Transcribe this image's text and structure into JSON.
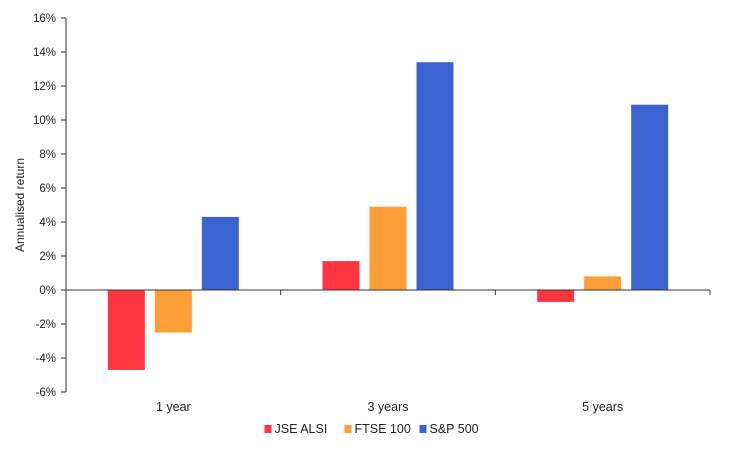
{
  "chart_data": {
    "type": "bar",
    "title": "",
    "xlabel": "",
    "ylabel": "Annualised return",
    "categories": [
      "1 year",
      "3 years",
      "5 years"
    ],
    "series": [
      {
        "name": "JSE ALSI",
        "color": "#ff3640",
        "values": [
          -4.7,
          1.7,
          -0.7
        ]
      },
      {
        "name": "FTSE 100",
        "color": "#ff9e36",
        "values": [
          -2.5,
          4.9,
          0.8
        ]
      },
      {
        "name": "S&P 500",
        "color": "#3a63d0",
        "values": [
          4.3,
          13.4,
          10.9
        ]
      }
    ],
    "ylim": [
      -6,
      16
    ],
    "yticks": [
      -6,
      -4,
      -2,
      0,
      2,
      4,
      6,
      8,
      10,
      12,
      14,
      16
    ],
    "ytick_labels": [
      "-6%",
      "-4%",
      "-2%",
      "0%",
      "2%",
      "4%",
      "6%",
      "8%",
      "10%",
      "12%",
      "14%",
      "16%"
    ],
    "grid": false,
    "legend_position": "bottom"
  }
}
